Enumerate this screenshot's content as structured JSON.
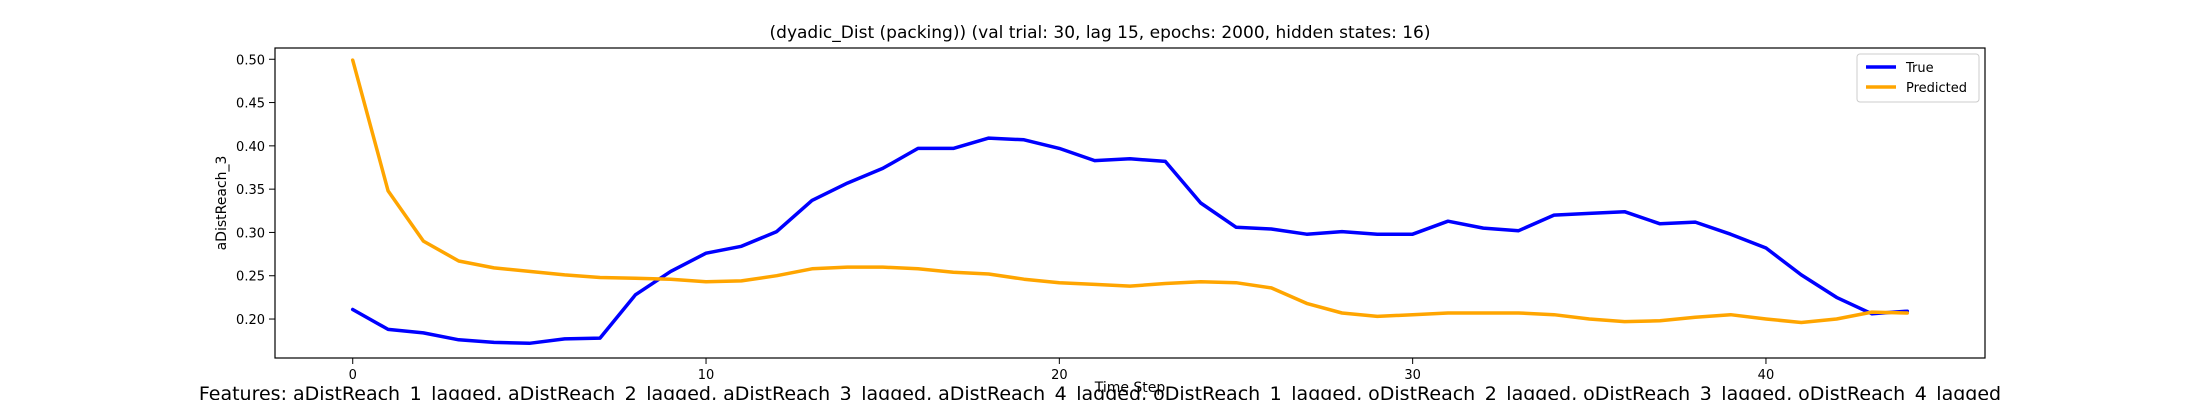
{
  "chart_data": {
    "type": "line",
    "title": "(dyadic_Dist (packing)) (val trial: 30, lag 15, epochs: 2000, hidden states: 16)",
    "xlabel": "Time Step",
    "ylabel": "aDistReach_3",
    "xlim": [
      -2.2,
      46.2
    ],
    "ylim": [
      0.155,
      0.513
    ],
    "xticks": [
      0,
      10,
      20,
      30,
      40
    ],
    "yticks": [
      0.2,
      0.25,
      0.3,
      0.35,
      0.4,
      0.45,
      0.5
    ],
    "grid": false,
    "legend_position": "top-right",
    "series": [
      {
        "name": "True",
        "color": "#0000ff",
        "x": [
          0,
          1,
          2,
          3,
          4,
          5,
          6,
          7,
          8,
          9,
          10,
          11,
          12,
          13,
          14,
          15,
          16,
          17,
          18,
          19,
          20,
          21,
          22,
          23,
          24,
          25,
          26,
          27,
          28,
          29,
          30,
          31,
          32,
          33,
          34,
          35,
          36,
          37,
          38,
          39,
          40,
          41,
          42,
          43,
          44
        ],
        "values": [
          0.211,
          0.188,
          0.184,
          0.176,
          0.173,
          0.172,
          0.177,
          0.178,
          0.228,
          0.255,
          0.276,
          0.284,
          0.301,
          0.337,
          0.357,
          0.374,
          0.397,
          0.397,
          0.409,
          0.407,
          0.397,
          0.383,
          0.385,
          0.382,
          0.334,
          0.306,
          0.304,
          0.298,
          0.301,
          0.298,
          0.298,
          0.313,
          0.305,
          0.302,
          0.32,
          0.322,
          0.324,
          0.31,
          0.312,
          0.298,
          0.282,
          0.251,
          0.225,
          0.206,
          0.209
        ]
      },
      {
        "name": "Predicted",
        "color": "#ffa500",
        "x": [
          0,
          1,
          2,
          3,
          4,
          5,
          6,
          7,
          8,
          9,
          10,
          11,
          12,
          13,
          14,
          15,
          16,
          17,
          18,
          19,
          20,
          21,
          22,
          23,
          24,
          25,
          26,
          27,
          28,
          29,
          30,
          31,
          32,
          33,
          34,
          35,
          36,
          37,
          38,
          39,
          40,
          41,
          42,
          43,
          44
        ],
        "values": [
          0.499,
          0.348,
          0.29,
          0.267,
          0.259,
          0.255,
          0.251,
          0.248,
          0.247,
          0.246,
          0.243,
          0.244,
          0.25,
          0.258,
          0.26,
          0.26,
          0.258,
          0.254,
          0.252,
          0.246,
          0.242,
          0.24,
          0.238,
          0.241,
          0.243,
          0.242,
          0.236,
          0.218,
          0.207,
          0.203,
          0.205,
          0.207,
          0.207,
          0.207,
          0.205,
          0.2,
          0.197,
          0.198,
          0.202,
          0.205,
          0.2,
          0.196,
          0.2,
          0.208,
          0.207
        ]
      }
    ]
  },
  "footer": {
    "features_text": "Features: aDistReach_1_lagged, aDistReach_2_lagged, aDistReach_3_lagged, aDistReach_4_lagged, oDistReach_1_lagged, oDistReach_2_lagged, oDistReach_3_lagged, oDistReach_4_lagged"
  }
}
